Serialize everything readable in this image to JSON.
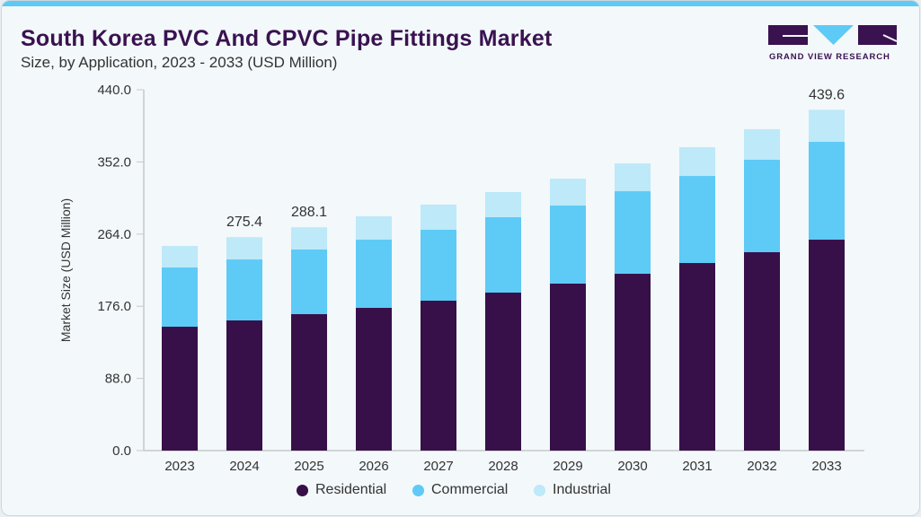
{
  "header": {
    "title": "South Korea PVC And CPVC Pipe Fittings Market",
    "subtitle": "Size, by Application, 2023 - 2033 (USD Million)"
  },
  "logo": {
    "text": "GRAND VIEW RESEARCH"
  },
  "chart_data": {
    "type": "bar",
    "stacked": true,
    "title": "South Korea PVC And CPVC Pipe Fittings Market",
    "subtitle": "Size, by Application, 2023 - 2033 (USD Million)",
    "xlabel": "",
    "ylabel": "Market Size (USD Million)",
    "ylim": [
      0,
      440
    ],
    "yticks": [
      "0.0",
      "88.0",
      "176.0",
      "264.0",
      "352.0",
      "440.0"
    ],
    "categories": [
      "2023",
      "2024",
      "2025",
      "2026",
      "2027",
      "2028",
      "2029",
      "2030",
      "2031",
      "2032",
      "2033"
    ],
    "series": [
      {
        "name": "Residential",
        "color": "#371049",
        "values": [
          159.8,
          167.9,
          176.0,
          184.1,
          193.4,
          203.8,
          215.4,
          228.1,
          242.0,
          255.9,
          272.1
        ]
      },
      {
        "name": "Commercial",
        "color": "#5ecaf6",
        "values": [
          76.4,
          78.7,
          83.4,
          88.0,
          91.5,
          97.3,
          100.7,
          106.5,
          112.3,
          119.3,
          126.2
        ]
      },
      {
        "name": "Industrial",
        "color": "#bde9f9",
        "values": [
          27.8,
          28.8,
          28.7,
          30.1,
          32.4,
          32.4,
          34.7,
          35.9,
          37.1,
          39.4,
          41.3
        ]
      }
    ],
    "data_labels": [
      {
        "category": "2024",
        "text": "275.4"
      },
      {
        "category": "2025",
        "text": "288.1"
      },
      {
        "category": "2033",
        "text": "439.6"
      }
    ],
    "grid": false,
    "legend": "bottom"
  }
}
